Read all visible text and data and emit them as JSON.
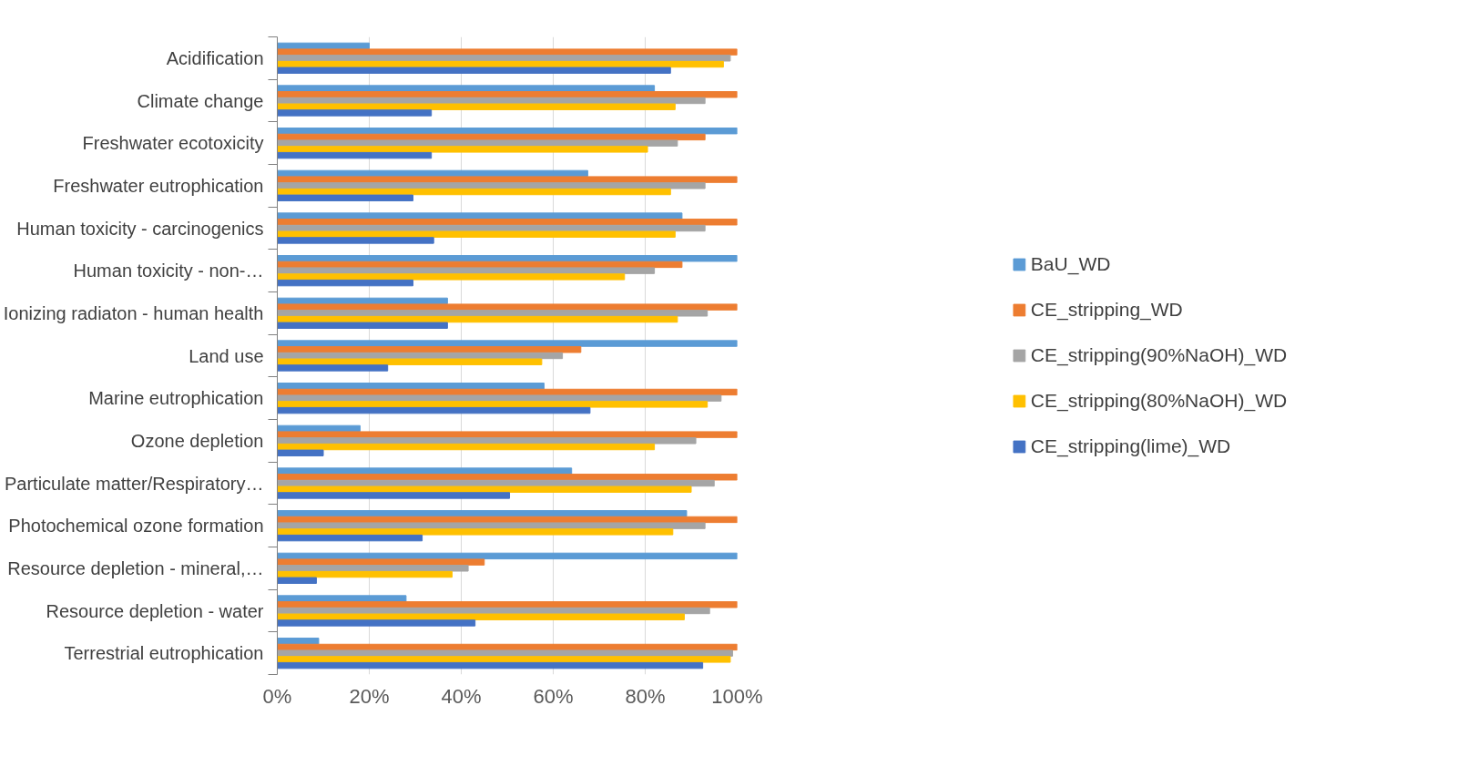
{
  "chart_data": {
    "type": "bar",
    "orientation": "horizontal",
    "categories": [
      "Acidification",
      "Climate change",
      "Freshwater ecotoxicity",
      "Freshwater eutrophication",
      "Human toxicity - carcinogenics",
      "Human toxicity - non-…",
      "Ionizing radiaton - human health",
      "Land use",
      "Marine eutrophication",
      "Ozone depletion",
      "Particulate matter/Respiratory…",
      "Photochemical ozone formation",
      "Resource depletion - mineral,…",
      "Resource depletion - water",
      "Terrestrial eutrophication"
    ],
    "series": [
      {
        "name": "BaU_WD",
        "color": "#5b9bd5",
        "values": [
          20,
          82,
          100,
          67.5,
          88,
          100,
          37,
          100,
          58,
          18,
          64,
          89,
          100,
          28,
          9
        ]
      },
      {
        "name": "CE_stripping_WD",
        "color": "#ed7d31",
        "values": [
          100,
          100,
          93,
          100,
          100,
          88,
          100,
          66,
          100,
          100,
          100,
          100,
          45,
          100,
          100
        ]
      },
      {
        "name": "CE_stripping(90%NaOH)_WD",
        "color": "#a5a5a5",
        "values": [
          98.5,
          93,
          87,
          93,
          93,
          82,
          93.5,
          62,
          96.5,
          91,
          95,
          93,
          41.5,
          94,
          99
        ]
      },
      {
        "name": "CE_stripping(80%NaOH)_WD",
        "color": "#ffc000",
        "values": [
          97,
          86.5,
          80.5,
          85.5,
          86.5,
          75.5,
          87,
          57.5,
          93.5,
          82,
          90,
          86,
          38,
          88.5,
          98.5
        ]
      },
      {
        "name": "CE_stripping(lime)_WD",
        "color": "#4472c4",
        "values": [
          85.5,
          33.5,
          33.5,
          29.5,
          34,
          29.5,
          37,
          24,
          68,
          10,
          50.5,
          31.5,
          8.5,
          43,
          92.5
        ]
      }
    ],
    "xlim": [
      0,
      100
    ],
    "xticks": [
      {
        "value": 0,
        "label": "0%"
      },
      {
        "value": 20,
        "label": "20%"
      },
      {
        "value": 40,
        "label": "40%"
      },
      {
        "value": 60,
        "label": "60%"
      },
      {
        "value": 80,
        "label": "80%"
      },
      {
        "value": 100,
        "label": "100%"
      }
    ],
    "grid": "x",
    "legend": "right"
  }
}
